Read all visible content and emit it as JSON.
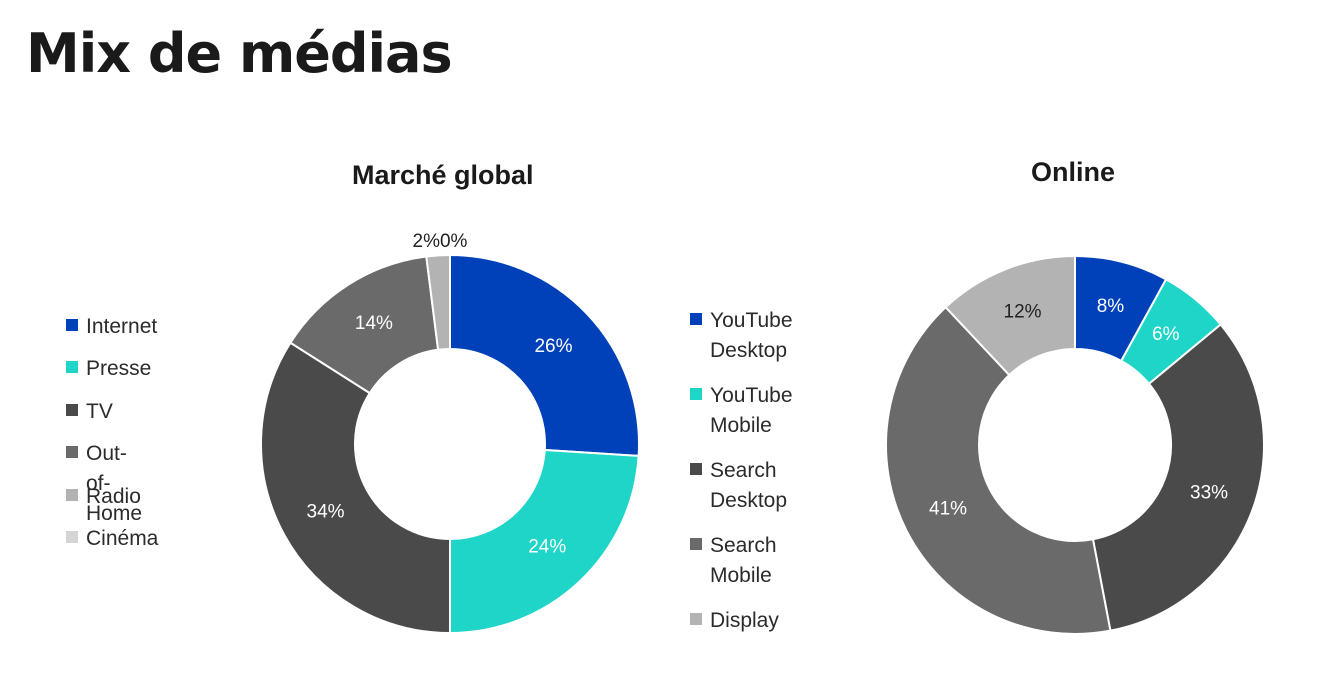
{
  "page": {
    "title": "Mix de médias"
  },
  "chart_data": [
    {
      "type": "pie",
      "title": "Marché global",
      "slices": [
        {
          "label": "Internet",
          "value": 26,
          "display": "26%",
          "color": "#0041b9"
        },
        {
          "label": "Presse",
          "value": 24,
          "display": "24%",
          "color": "#1fd5c8"
        },
        {
          "label": "TV",
          "value": 34,
          "display": "34%",
          "color": "#4a4a4a"
        },
        {
          "label": "Out-of-Home",
          "value": 14,
          "display": "14%",
          "color": "#6a6a6a"
        },
        {
          "label": "Radio",
          "value": 2,
          "display": "2%",
          "color": "#b3b3b3"
        },
        {
          "label": "Cinéma",
          "value": 0,
          "display": "0%",
          "color": "#d4d4d4"
        }
      ],
      "outside_labels": "2%0%",
      "legend_position": "left"
    },
    {
      "type": "pie",
      "title": "Online",
      "slices": [
        {
          "label": "YouTube\nDesktop",
          "value": 8,
          "display": "8%",
          "color": "#0041b9"
        },
        {
          "label": "YouTube\nMobile",
          "value": 6,
          "display": "6%",
          "color": "#1fd5c8"
        },
        {
          "label": "Search\nDesktop",
          "value": 33,
          "display": "33%",
          "color": "#4a4a4a"
        },
        {
          "label": "Search Mobile",
          "value": 41,
          "display": "41%",
          "color": "#6a6a6a"
        },
        {
          "label": "Display",
          "value": 12,
          "display": "12%",
          "color": "#b3b3b3"
        }
      ],
      "legend_position": "left"
    }
  ]
}
